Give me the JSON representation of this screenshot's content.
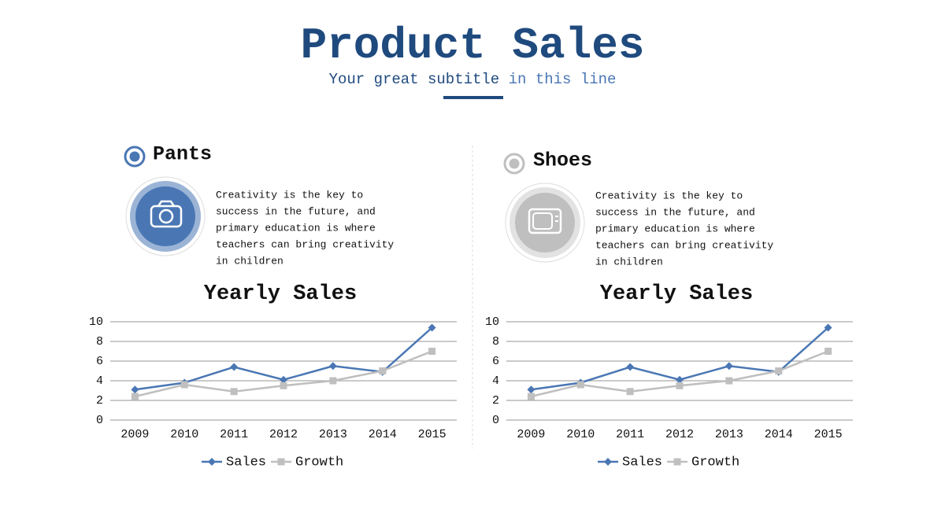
{
  "header": {
    "title": "Product Sales",
    "subtitle_main": "Your great subtitle",
    "subtitle_accent": "in this line"
  },
  "panels": [
    {
      "heading": "Pants",
      "description_lines": [
        "Creativity is the key to",
        "success in the future, and",
        "primary education is where",
        "teachers can bring creativity",
        "in children"
      ]
    },
    {
      "heading": "Shoes",
      "description_lines": [
        "Creativity is the key to",
        "success in the future, and",
        "primary education is where",
        "teachers can bring creativity",
        "in children"
      ]
    }
  ],
  "chart_data": [
    {
      "type": "line",
      "title": "Yearly Sales",
      "categories": [
        "2009",
        "2010",
        "2011",
        "2012",
        "2013",
        "2014",
        "2015"
      ],
      "series": [
        {
          "name": "Sales",
          "color": "#4a77b4",
          "marker": "diamond",
          "values": [
            3.1,
            3.8,
            5.4,
            4.1,
            5.5,
            4.9,
            9.4
          ]
        },
        {
          "name": "Growth",
          "color": "#bfbfbf",
          "marker": "square",
          "values": [
            2.4,
            3.6,
            2.9,
            3.5,
            4.0,
            5.0,
            7.0
          ]
        }
      ],
      "ylim": [
        0,
        10
      ],
      "yticks": [
        0,
        2,
        4,
        6,
        8,
        10
      ],
      "grid": true,
      "legend": "bottom"
    },
    {
      "type": "line",
      "title": "Yearly Sales",
      "categories": [
        "2009",
        "2010",
        "2011",
        "2012",
        "2013",
        "2014",
        "2015"
      ],
      "series": [
        {
          "name": "Sales",
          "color": "#4a77b4",
          "marker": "diamond",
          "values": [
            3.1,
            3.8,
            5.4,
            4.1,
            5.5,
            4.9,
            9.4
          ]
        },
        {
          "name": "Growth",
          "color": "#bfbfbf",
          "marker": "square",
          "values": [
            2.4,
            3.6,
            2.9,
            3.5,
            4.0,
            5.0,
            7.0
          ]
        }
      ],
      "ylim": [
        0,
        10
      ],
      "yticks": [
        0,
        2,
        4,
        6,
        8,
        10
      ],
      "grid": true,
      "legend": "bottom"
    }
  ]
}
